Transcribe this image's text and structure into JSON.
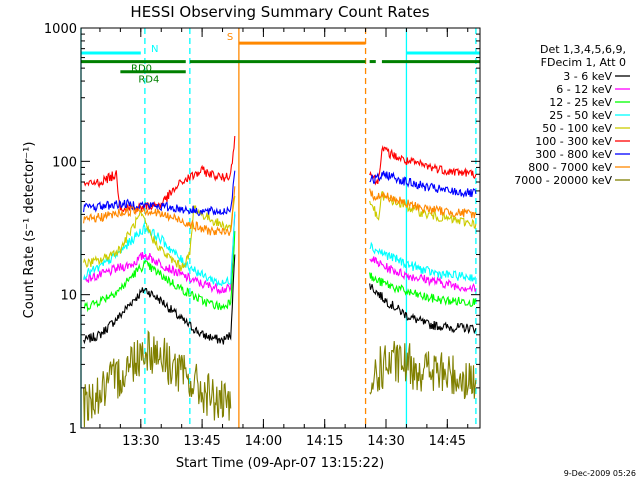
{
  "chart_data": {
    "type": "line",
    "title": "HESSI Observing Summary Count Rates",
    "xlabel": "Start Time (09-Apr-07 13:15:22)",
    "ylabel": "Count Rate (s⁻¹ detector⁻¹)",
    "yscale": "log",
    "ylim": [
      1,
      1000
    ],
    "y_ticks": [
      1,
      10,
      100,
      1000
    ],
    "y_tick_labels": [
      "1",
      "10",
      "100",
      "1000"
    ],
    "x_range": [
      "13:15:22",
      "14:53:00"
    ],
    "x_ticks": [
      "13:30",
      "13:45",
      "14:00",
      "14:15",
      "14:30",
      "14:45"
    ],
    "grid": false,
    "legend_placement": "right",
    "legend_header": [
      "Det 1,3,4,5,6,9,",
      "FDecim 1, Att 0"
    ],
    "series": [
      {
        "name": "3 - 6 keV",
        "color": "#000000",
        "x": [
          "13:16",
          "13:20",
          "13:25",
          "13:28",
          "13:31",
          "13:35",
          "13:40",
          "13:45",
          "13:50",
          "13:52",
          "13:53",
          "14:26",
          "14:27",
          "14:30",
          "14:35",
          "14:40",
          "14:45",
          "14:52"
        ],
        "values": [
          4.5,
          5,
          7,
          9,
          11,
          9,
          6.5,
          5,
          4.5,
          5,
          20,
          12,
          11,
          9,
          7,
          6,
          5.7,
          5.6
        ]
      },
      {
        "name": "6 - 12 keV",
        "color": "#ff00ff",
        "x": [
          "13:16",
          "13:20",
          "13:25",
          "13:28",
          "13:31",
          "13:35",
          "13:40",
          "13:45",
          "13:50",
          "13:52",
          "13:53",
          "14:26",
          "14:27",
          "14:30",
          "14:35",
          "14:40",
          "14:45",
          "14:52"
        ],
        "values": [
          13,
          14,
          16,
          17,
          20,
          17,
          14,
          12,
          11,
          11,
          40,
          20,
          18,
          16,
          14,
          13,
          12,
          11
        ]
      },
      {
        "name": "12 - 25 keV",
        "color": "#00ff00",
        "x": [
          "13:16",
          "13:20",
          "13:25",
          "13:28",
          "13:31",
          "13:35",
          "13:40",
          "13:45",
          "13:50",
          "13:52",
          "13:53",
          "14:26",
          "14:27",
          "14:30",
          "14:35",
          "14:40",
          "14:45",
          "14:52"
        ],
        "values": [
          8,
          9,
          11,
          14,
          17,
          14,
          11,
          9,
          8,
          9,
          30,
          14,
          13,
          12,
          10.5,
          9.5,
          9,
          8.8
        ]
      },
      {
        "name": "25 - 50 keV",
        "color": "#00ffff",
        "x": [
          "13:16",
          "13:20",
          "13:25",
          "13:28",
          "13:31",
          "13:35",
          "13:40",
          "13:45",
          "13:50",
          "13:52",
          "13:53",
          "14:26",
          "14:27",
          "14:30",
          "14:35",
          "14:40",
          "14:45",
          "14:52"
        ],
        "values": [
          14,
          16,
          21,
          26,
          32,
          26,
          18,
          14,
          12,
          13,
          42,
          24,
          22,
          20,
          17,
          15,
          14,
          13.5
        ]
      },
      {
        "name": "50 - 100 keV",
        "color": "#cccc00",
        "x": [
          "13:16",
          "13:20",
          "13:25",
          "13:28",
          "13:30",
          "13:33",
          "13:36",
          "13:40",
          "13:42",
          "13:43",
          "13:45",
          "13:50",
          "13:52",
          "13:53",
          "14:26",
          "14:27",
          "14:28",
          "14:29",
          "14:30",
          "14:35",
          "14:40",
          "14:45",
          "14:52"
        ],
        "values": [
          17,
          18,
          22,
          32,
          40,
          26,
          20,
          16,
          20,
          45,
          40,
          33,
          32,
          55,
          50,
          45,
          35,
          56,
          53,
          46,
          40,
          37,
          34
        ]
      },
      {
        "name": "100 - 300 keV",
        "color": "#ff0000",
        "x": [
          "13:16",
          "13:20",
          "13:24",
          "13:25",
          "13:30",
          "13:35",
          "13:40",
          "13:45",
          "13:50",
          "13:52",
          "13:53",
          "14:26",
          "14:27",
          "14:28",
          "14:29",
          "14:30",
          "14:35",
          "14:40",
          "14:45",
          "14:52"
        ],
        "values": [
          66,
          70,
          80,
          45,
          45,
          48,
          70,
          85,
          75,
          80,
          155,
          83,
          75,
          68,
          125,
          118,
          100,
          92,
          85,
          80
        ]
      },
      {
        "name": "300 - 800 keV",
        "color": "#0000ff",
        "x": [
          "13:16",
          "13:20",
          "13:25",
          "13:30",
          "13:35",
          "13:40",
          "13:45",
          "13:50",
          "13:52",
          "13:53",
          "14:26",
          "14:27",
          "14:30",
          "14:35",
          "14:40",
          "14:45",
          "14:52"
        ],
        "values": [
          45,
          46,
          48,
          47,
          46,
          44,
          42,
          42,
          44,
          85,
          75,
          72,
          80,
          70,
          64,
          60,
          57
        ]
      },
      {
        "name": "800 - 7000 keV",
        "color": "#ff8800",
        "x": [
          "13:16",
          "13:20",
          "13:25",
          "13:30",
          "13:35",
          "13:40",
          "13:45",
          "13:50",
          "13:52",
          "13:53",
          "14:26",
          "14:27",
          "14:30",
          "14:35",
          "14:40",
          "14:45",
          "14:52"
        ],
        "values": [
          36,
          38,
          41,
          44,
          40,
          36,
          31,
          29,
          30,
          65,
          58,
          55,
          55,
          48,
          44,
          42,
          40
        ]
      },
      {
        "name": "7000 - 20000 keV",
        "color": "#808000",
        "x": [
          "13:16",
          "13:20",
          "13:25",
          "13:28",
          "13:31",
          "13:35",
          "13:40",
          "13:45",
          "13:50",
          "13:52",
          "14:26",
          "14:27",
          "14:30",
          "14:35",
          "14:40",
          "14:45",
          "14:52"
        ],
        "values": [
          1.5,
          1.8,
          2.5,
          3.2,
          4,
          3.5,
          2.5,
          1.9,
          1.5,
          1.4,
          1.3,
          2.5,
          3,
          3,
          2.7,
          2.5,
          2.3
        ]
      }
    ],
    "state_bars": [
      {
        "label": "N",
        "color": "#00ffff",
        "value": 650,
        "segments": [
          [
            "13:15:22",
            "13:30"
          ],
          [
            "14:35",
            "14:53"
          ]
        ]
      },
      {
        "label": "RD0",
        "color": "#008000",
        "value": 560,
        "segments": [
          [
            "13:15:22",
            "13:41"
          ],
          [
            "13:42",
            "14:25"
          ],
          [
            "14:26",
            "14:27:30"
          ],
          [
            "14:29",
            "14:53"
          ]
        ]
      },
      {
        "label": "RD4",
        "color": "#008000",
        "value": 470,
        "segments": [
          [
            "13:25",
            "13:41"
          ]
        ]
      },
      {
        "label": "S",
        "color": "#ff8800",
        "value": 770,
        "segments": [
          [
            "13:54",
            "14:25"
          ]
        ]
      }
    ],
    "vertical_markers": [
      {
        "x": "13:15:22",
        "color": "#00ffff",
        "style": "solid"
      },
      {
        "x": "13:31",
        "color": "#00ffff",
        "style": "dashed"
      },
      {
        "x": "13:42",
        "color": "#00ffff",
        "style": "dashed"
      },
      {
        "x": "13:54",
        "color": "#ff8800",
        "style": "solid"
      },
      {
        "x": "14:25",
        "color": "#ff8800",
        "style": "dashed"
      },
      {
        "x": "14:35",
        "color": "#00ffff",
        "style": "solid"
      },
      {
        "x": "14:52",
        "color": "#00ffff",
        "style": "dashed"
      }
    ],
    "footer_stamp": "9-Dec-2009 05:26"
  }
}
